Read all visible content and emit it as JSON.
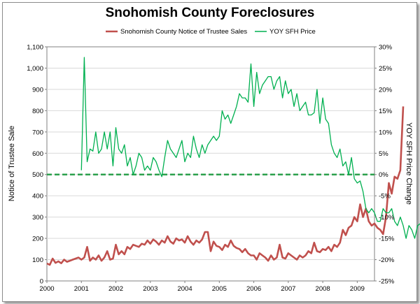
{
  "chart_data": {
    "type": "line",
    "title": "Snohomish County Foreclosures",
    "ylabel_left": "Notice of Trustee Sale",
    "ylabel_right": "YOY SFH Price Change",
    "xlabel": "",
    "xlim": [
      2000,
      2009.5
    ],
    "ylim_left": [
      0,
      1100
    ],
    "ylim_right": [
      -25,
      30
    ],
    "x_ticks": [
      "2000",
      "2001",
      "2002",
      "2003",
      "2004",
      "2005",
      "2006",
      "2007",
      "2008",
      "2009"
    ],
    "y_left_ticks": [
      "0",
      "100",
      "200",
      "300",
      "400",
      "500",
      "600",
      "700",
      "800",
      "900",
      "1,000",
      "1,100"
    ],
    "y_right_ticks": [
      "-25%",
      "-20%",
      "-15%",
      "-10%",
      "-5%",
      "0%",
      "5%",
      "10%",
      "15%",
      "20%",
      "25%",
      "30%"
    ],
    "grid": true,
    "legend_position": "top",
    "reference_line": {
      "axis": "right",
      "value": 0,
      "style": "dashed",
      "color": "#2ca04c"
    },
    "series": [
      {
        "name": "Snohomish County Notice of Trustee Sales",
        "axis": "left",
        "color": "#c0504d",
        "x_start": 2000,
        "x_step": 0.08333,
        "values": [
          82,
          76,
          105,
          85,
          92,
          83,
          100,
          90,
          95,
          100,
          105,
          110,
          100,
          110,
          160,
          95,
          110,
          100,
          120,
          95,
          110,
          140,
          100,
          105,
          170,
          125,
          140,
          125,
          160,
          150,
          170,
          165,
          160,
          175,
          170,
          190,
          175,
          195,
          185,
          170,
          190,
          180,
          210,
          185,
          175,
          200,
          190,
          195,
          180,
          210,
          185,
          170,
          190,
          180,
          195,
          230,
          230,
          140,
          185,
          165,
          160,
          145,
          170,
          160,
          190,
          165,
          155,
          150,
          135,
          150,
          130,
          120,
          120,
          100,
          130,
          120,
          110,
          95,
          120,
          100,
          110,
          170,
          110,
          105,
          130,
          120,
          110,
          100,
          120,
          110,
          120,
          140,
          130,
          180,
          140,
          135,
          150,
          145,
          160,
          140,
          170,
          160,
          180,
          240,
          215,
          250,
          260,
          300,
          280,
          360,
          300,
          340,
          280,
          260,
          270,
          250,
          240,
          220,
          300,
          460,
          410,
          490,
          480,
          520,
          820
        ]
      },
      {
        "name": "YOY SFH Price",
        "axis": "right",
        "color": "#00b050",
        "x_start": 2001,
        "x_step": 0.08333,
        "values": [
          1,
          27.5,
          3,
          6,
          5.5,
          10,
          5,
          6,
          10,
          6,
          10,
          2,
          11,
          6,
          5,
          7,
          2,
          4,
          0,
          2,
          5,
          4,
          1,
          2,
          1,
          4,
          3,
          1,
          -0.5,
          4,
          8,
          6,
          5,
          4,
          6,
          8,
          3,
          5,
          4,
          9,
          6,
          4,
          7,
          5,
          7,
          8,
          9,
          8,
          9,
          15,
          13,
          14,
          12,
          14,
          16,
          19,
          18,
          18,
          17,
          26,
          16,
          24,
          19,
          21,
          22,
          23,
          23,
          20,
          22,
          23,
          18,
          22,
          19,
          20,
          16,
          19,
          15,
          16,
          17,
          14,
          14,
          14.5,
          20,
          12,
          18,
          13,
          12,
          7,
          5,
          4,
          6,
          2,
          3,
          0,
          4,
          -1,
          -2,
          -1.5,
          -4,
          -8,
          -9,
          -8,
          -9,
          -11,
          -11,
          -8,
          -9,
          -9,
          -8,
          -11,
          -12,
          -10,
          -12,
          -15,
          -12,
          -13,
          -15,
          -12,
          -11.5,
          -12.5,
          -12,
          -13,
          -14.5,
          -11.5,
          -12
        ]
      }
    ]
  }
}
